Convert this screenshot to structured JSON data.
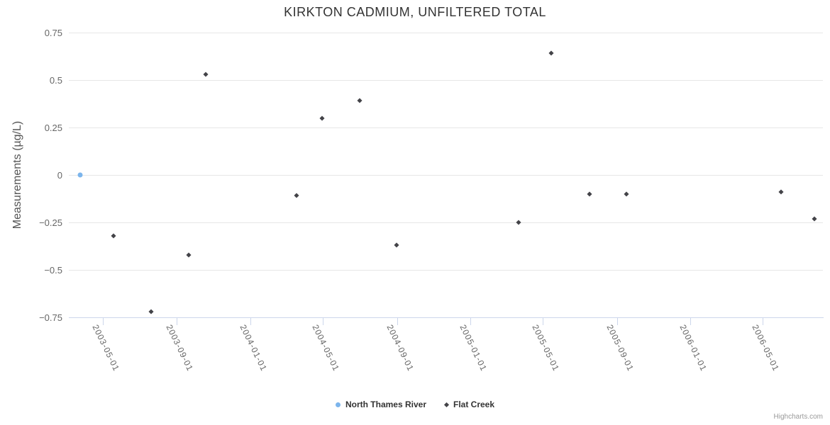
{
  "chart_data": {
    "type": "scatter",
    "title": "KIRKTON CADMIUM, UNFILTERED TOTAL",
    "ylabel": "Measurements (µg/L)",
    "xlabel": "",
    "ylim": [
      -0.75,
      0.75
    ],
    "yticks": [
      {
        "value": 0.75,
        "label": "0.75"
      },
      {
        "value": 0.5,
        "label": "0.5"
      },
      {
        "value": 0.25,
        "label": "0.25"
      },
      {
        "value": 0,
        "label": "0"
      },
      {
        "value": -0.25,
        "label": "−0.25"
      },
      {
        "value": -0.5,
        "label": "−0.5"
      },
      {
        "value": -0.75,
        "label": "−0.75"
      }
    ],
    "xlim": [
      "2003-03-06",
      "2006-08-09"
    ],
    "xticks": [
      "2003-05-01",
      "2003-09-01",
      "2004-01-01",
      "2004-05-01",
      "2004-09-01",
      "2005-01-01",
      "2005-05-01",
      "2005-09-01",
      "2006-01-01",
      "2006-05-01"
    ],
    "grid": true,
    "legend_position": "bottom-center",
    "series": [
      {
        "name": "North Thames River",
        "color": "#7cb5ec",
        "marker": "circle",
        "data": [
          [
            "2003-03-25",
            0
          ]
        ]
      },
      {
        "name": "Flat Creek",
        "color": "#434348",
        "marker": "diamond",
        "data": [
          [
            "2003-05-19",
            -0.32
          ],
          [
            "2003-07-21",
            -0.72
          ],
          [
            "2003-09-21",
            -0.42
          ],
          [
            "2003-10-19",
            0.53
          ],
          [
            "2004-03-18",
            -0.11
          ],
          [
            "2004-04-29",
            0.3
          ],
          [
            "2004-07-01",
            0.39
          ],
          [
            "2004-08-31",
            -0.37
          ],
          [
            "2005-03-22",
            -0.25
          ],
          [
            "2005-05-15",
            0.64
          ],
          [
            "2005-07-18",
            -0.1
          ],
          [
            "2005-09-17",
            -0.1
          ],
          [
            "2006-06-01",
            -0.09
          ],
          [
            "2006-07-26",
            -0.23
          ]
        ]
      }
    ],
    "credits": "Highcharts.com"
  },
  "colors": {
    "grid": "#e6e6e6",
    "axis_line": "#ccd6eb",
    "tick_label": "#666666",
    "title": "#333333",
    "legend_text": "#333333",
    "credits": "#999999"
  }
}
